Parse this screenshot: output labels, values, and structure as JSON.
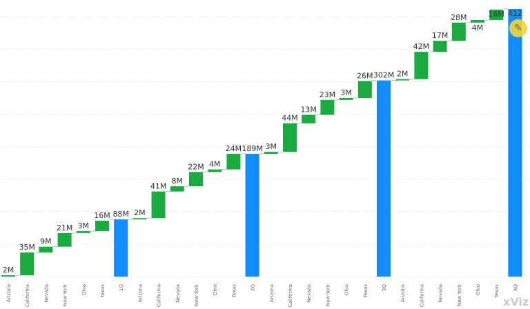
{
  "chart_data": {
    "type": "waterfall",
    "ylim": [
      0,
      412
    ],
    "grid": true,
    "colors": {
      "increase": "#1aab40",
      "total": "#118dff",
      "connector": "#bbbbbb"
    },
    "groups": [
      {
        "categories": [
          "Arizona",
          "California",
          "Nevada",
          "New York",
          "Ohio",
          "Texas"
        ],
        "values": [
          2,
          35,
          9,
          21,
          3,
          16
        ],
        "labels": [
          "2M",
          "35M",
          "9M",
          "21M",
          "3M",
          "16M"
        ],
        "total_label": "1Q",
        "total": 88,
        "total_text": "88M"
      },
      {
        "categories": [
          "Arizona",
          "California",
          "Nevada",
          "New York",
          "Ohio",
          "Texas"
        ],
        "values": [
          2,
          41,
          8,
          22,
          4,
          24
        ],
        "labels": [
          "2M",
          "41M",
          "8M",
          "22M",
          "4M",
          "24M"
        ],
        "total_label": "2Q",
        "total": 189,
        "total_text": "189M"
      },
      {
        "categories": [
          "Arizona",
          "California",
          "Nevada",
          "New York",
          "Ohio",
          "Texas"
        ],
        "values": [
          3,
          44,
          13,
          23,
          3,
          26
        ],
        "labels": [
          "3M",
          "44M",
          "13M",
          "23M",
          "3M",
          "26M"
        ],
        "total_label": "3Q",
        "total": 302,
        "total_text": "302M"
      },
      {
        "categories": [
          "Arizona",
          "California",
          "Nevada",
          "New York",
          "Ohio",
          "Texas"
        ],
        "values": [
          2,
          42,
          17,
          28,
          4,
          16
        ],
        "labels": [
          "2M",
          "42M",
          "17M",
          "28M",
          "4M",
          "16M"
        ],
        "total_label": "4Q",
        "total": 412,
        "total_text": "412"
      }
    ]
  },
  "watermark": "xViz",
  "edit_icon": "pencil-icon"
}
